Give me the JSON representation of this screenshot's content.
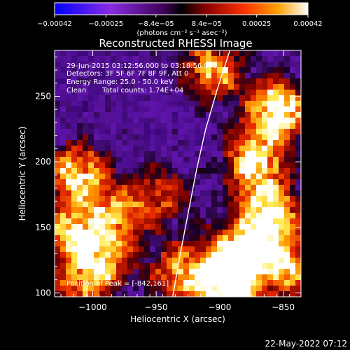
{
  "chart_data": {
    "type": "heatmap",
    "title": "Reconstructed RHESSI Image",
    "xlabel": "Heliocentric X (arcsec)",
    "ylabel": "Heliocentric Y (arcsec)",
    "xlim": [
      -1030,
      -836
    ],
    "ylim": [
      97,
      285
    ],
    "xticks": [
      -1000,
      -950,
      -900,
      -850
    ],
    "xtick_labels": [
      "−1000",
      "−950",
      "−900",
      "−850"
    ],
    "yticks": [
      100,
      150,
      200,
      250
    ],
    "ytick_labels": [
      "100",
      "150",
      "200",
      "250"
    ],
    "colorbar": {
      "ticks": [
        -0.00042,
        -0.00025,
        -8.4e-05,
        8.4e-05,
        0.00025,
        0.00042
      ],
      "tick_labels": [
        "−0.00042",
        "−0.00025",
        "−8.4e−05",
        "8.4e−05",
        "0.00025",
        "0.00042"
      ],
      "unit_label": "(photons cm⁻² s⁻¹ asec⁻²)",
      "colors": [
        "#0000ff",
        "#8a2be2",
        "#4b0082",
        "#000000",
        "#8b0000",
        "#ff4500",
        "#ffa500",
        "#ffffff"
      ]
    },
    "annotations": {
      "time_range": "29-Jun-2015 03:12:56.000 to 03:18:56.000",
      "detectors": "Detectors: 3F 5F 6F 7F 8F 9F, Att 0",
      "energy": "Energy Range: 25.0 - 50.0 keV",
      "clean": "Clean",
      "counts": "Total counts: 1.74E+04",
      "peak": "Position of Peak = [-842,161]"
    },
    "peak": [
      -842,
      161
    ],
    "limb": [
      [
        -937,
        97
      ],
      [
        -931,
        130
      ],
      [
        -925,
        160
      ],
      [
        -918,
        195
      ],
      [
        -911,
        225
      ],
      [
        -902,
        255
      ],
      [
        -892,
        285
      ]
    ],
    "bright_regions": [
      {
        "x": -855,
        "y": 240,
        "level": 1.0
      },
      {
        "x": -872,
        "y": 200,
        "level": 0.9
      },
      {
        "x": -862,
        "y": 160,
        "level": 0.95
      },
      {
        "x": -885,
        "y": 130,
        "level": 0.85
      },
      {
        "x": -895,
        "y": 105,
        "level": 0.9
      },
      {
        "x": -905,
        "y": 270,
        "level": 0.7
      },
      {
        "x": -1012,
        "y": 190,
        "level": 0.8
      },
      {
        "x": -1015,
        "y": 145,
        "level": 0.75
      },
      {
        "x": -980,
        "y": 160,
        "level": 0.6
      },
      {
        "x": -990,
        "y": 125,
        "level": 0.55
      },
      {
        "x": -945,
        "y": 175,
        "level": 0.45
      },
      {
        "x": -930,
        "y": 115,
        "level": 0.7
      },
      {
        "x": -1010,
        "y": 105,
        "level": 0.5
      },
      {
        "x": -850,
        "y": 120,
        "level": 0.8
      }
    ]
  },
  "footer": {
    "date": "22-May-2022 07:12"
  }
}
